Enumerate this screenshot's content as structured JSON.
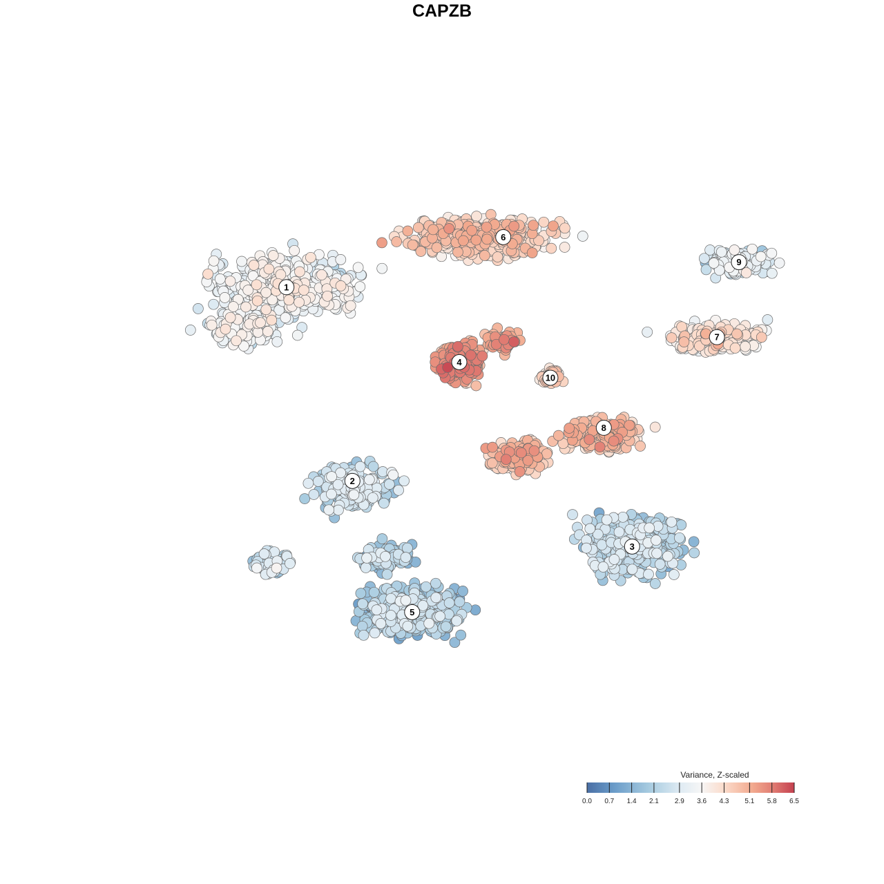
{
  "chart_data": {
    "type": "scatter",
    "title": "CAPZB",
    "xlabel": "",
    "ylabel": "",
    "grid": false,
    "legend": {
      "title": "Variance, Z-scaled",
      "placement": "bottom-right",
      "ticks": [
        "0.0",
        "0.7",
        "1.4",
        "2.1",
        "2.9",
        "3.6",
        "4.3",
        "5.1",
        "5.8",
        "6.5"
      ],
      "range": [
        0.0,
        6.5
      ],
      "colors": [
        "#4a6fa5",
        "#6a9cc9",
        "#a7cbe0",
        "#dfebf3",
        "#f6f6f6",
        "#fbdccc",
        "#f2a98e",
        "#e07b72",
        "#c4404f"
      ]
    },
    "clusters": [
      {
        "label": "1",
        "x": 0.225,
        "y": 0.745,
        "value": 2.9
      },
      {
        "label": "2",
        "x": 0.33,
        "y": 0.435,
        "value": 2.1
      },
      {
        "label": "3",
        "x": 0.775,
        "y": 0.33,
        "value": 1.8
      },
      {
        "label": "4",
        "x": 0.5,
        "y": 0.625,
        "value": 5.0
      },
      {
        "label": "5",
        "x": 0.425,
        "y": 0.225,
        "value": 1.6
      },
      {
        "label": "6",
        "x": 0.57,
        "y": 0.825,
        "value": 4.0
      },
      {
        "label": "7",
        "x": 0.91,
        "y": 0.665,
        "value": 3.6
      },
      {
        "label": "8",
        "x": 0.73,
        "y": 0.52,
        "value": 4.3
      },
      {
        "label": "9",
        "x": 0.945,
        "y": 0.785,
        "value": 2.4
      },
      {
        "label": "10",
        "x": 0.645,
        "y": 0.6,
        "value": 4.0
      }
    ]
  }
}
